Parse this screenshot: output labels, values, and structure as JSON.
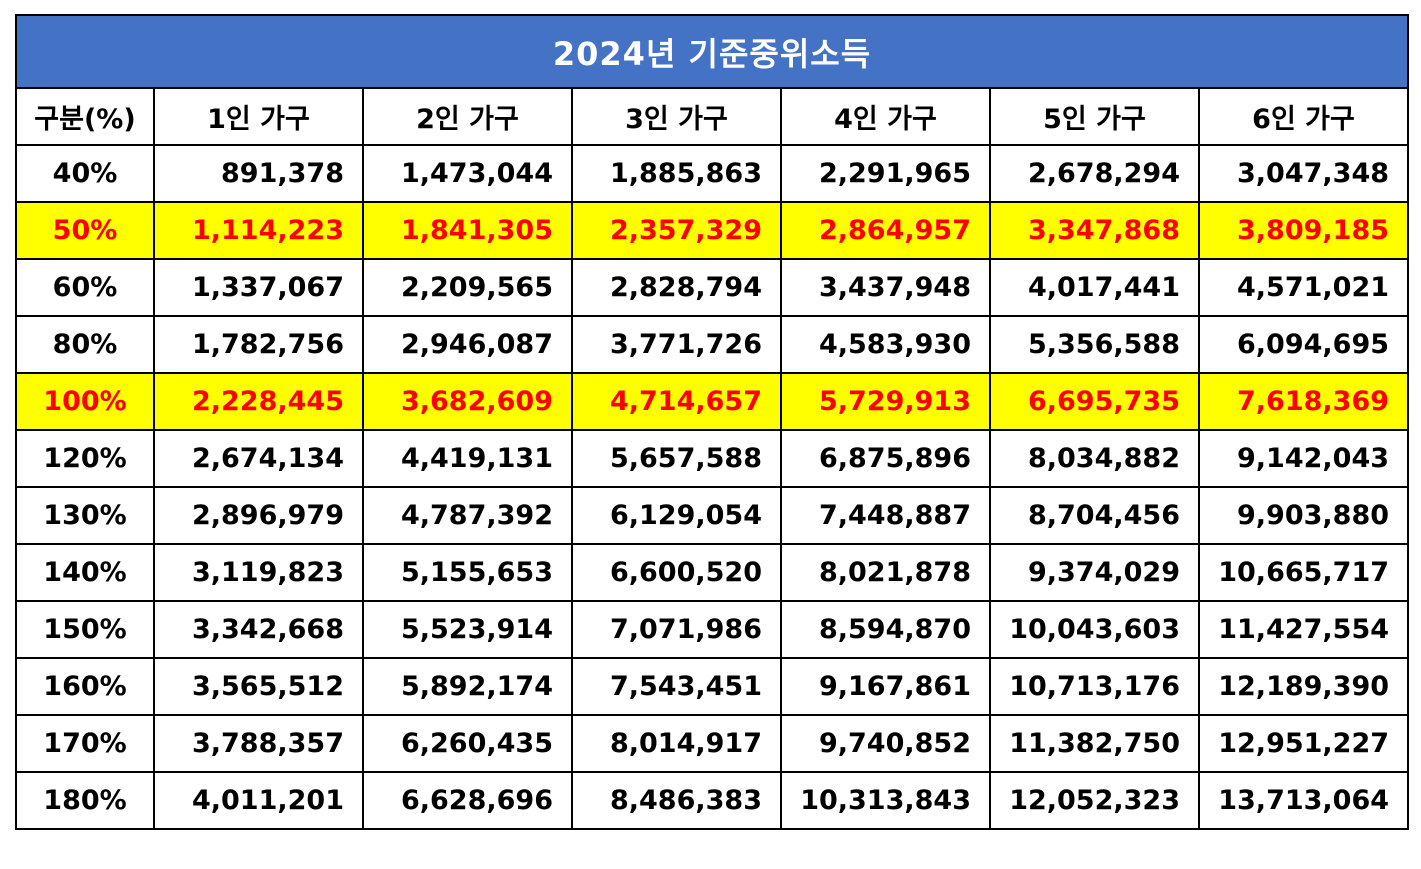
{
  "title": "2024년 기준중위소득",
  "colors": {
    "title_bg": "#4472c4",
    "title_text": "#ffffff",
    "highlight_bg": "#ffff00",
    "highlight_text": "#ff0000",
    "border": "#000000"
  },
  "headers": [
    "구분(%)",
    "1인 가구",
    "2인 가구",
    "3인 가구",
    "4인 가구",
    "5인 가구",
    "6인 가구"
  ],
  "rows": [
    {
      "label": "40%",
      "highlight": false,
      "values": [
        "891,378",
        "1,473,044",
        "1,885,863",
        "2,291,965",
        "2,678,294",
        "3,047,348"
      ]
    },
    {
      "label": "50%",
      "highlight": true,
      "values": [
        "1,114,223",
        "1,841,305",
        "2,357,329",
        "2,864,957",
        "3,347,868",
        "3,809,185"
      ]
    },
    {
      "label": "60%",
      "highlight": false,
      "values": [
        "1,337,067",
        "2,209,565",
        "2,828,794",
        "3,437,948",
        "4,017,441",
        "4,571,021"
      ]
    },
    {
      "label": "80%",
      "highlight": false,
      "values": [
        "1,782,756",
        "2,946,087",
        "3,771,726",
        "4,583,930",
        "5,356,588",
        "6,094,695"
      ]
    },
    {
      "label": "100%",
      "highlight": true,
      "values": [
        "2,228,445",
        "3,682,609",
        "4,714,657",
        "5,729,913",
        "6,695,735",
        "7,618,369"
      ]
    },
    {
      "label": "120%",
      "highlight": false,
      "values": [
        "2,674,134",
        "4,419,131",
        "5,657,588",
        "6,875,896",
        "8,034,882",
        "9,142,043"
      ]
    },
    {
      "label": "130%",
      "highlight": false,
      "values": [
        "2,896,979",
        "4,787,392",
        "6,129,054",
        "7,448,887",
        "8,704,456",
        "9,903,880"
      ]
    },
    {
      "label": "140%",
      "highlight": false,
      "values": [
        "3,119,823",
        "5,155,653",
        "6,600,520",
        "8,021,878",
        "9,374,029",
        "10,665,717"
      ]
    },
    {
      "label": "150%",
      "highlight": false,
      "values": [
        "3,342,668",
        "5,523,914",
        "7,071,986",
        "8,594,870",
        "10,043,603",
        "11,427,554"
      ]
    },
    {
      "label": "160%",
      "highlight": false,
      "values": [
        "3,565,512",
        "5,892,174",
        "7,543,451",
        "9,167,861",
        "10,713,176",
        "12,189,390"
      ]
    },
    {
      "label": "170%",
      "highlight": false,
      "values": [
        "3,788,357",
        "6,260,435",
        "8,014,917",
        "9,740,852",
        "11,382,750",
        "12,951,227"
      ]
    },
    {
      "label": "180%",
      "highlight": false,
      "values": [
        "4,011,201",
        "6,628,696",
        "8,486,383",
        "10,313,843",
        "12,052,323",
        "13,713,064"
      ]
    }
  ]
}
